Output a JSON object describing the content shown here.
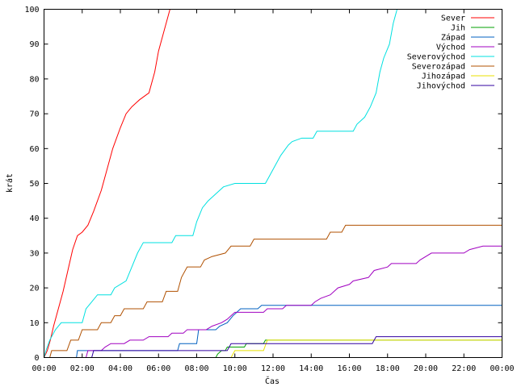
{
  "chart_data": {
    "type": "line",
    "title": "",
    "xlabel": "Čas",
    "ylabel": "krát",
    "xlim": [
      0,
      24
    ],
    "ylim": [
      0,
      100
    ],
    "grid": false,
    "legend_position": "top-right",
    "x_ticks": [
      {
        "value": 0,
        "label": "00:00"
      },
      {
        "value": 2,
        "label": "02:00"
      },
      {
        "value": 4,
        "label": "04:00"
      },
      {
        "value": 6,
        "label": "06:00"
      },
      {
        "value": 8,
        "label": "08:00"
      },
      {
        "value": 10,
        "label": "10:00"
      },
      {
        "value": 12,
        "label": "12:00"
      },
      {
        "value": 14,
        "label": "14:00"
      },
      {
        "value": 16,
        "label": "16:00"
      },
      {
        "value": 18,
        "label": "18:00"
      },
      {
        "value": 20,
        "label": "20:00"
      },
      {
        "value": 22,
        "label": "22:00"
      },
      {
        "value": 24,
        "label": "00:00"
      }
    ],
    "y_ticks": [
      0,
      10,
      20,
      30,
      40,
      50,
      60,
      70,
      80,
      90,
      100
    ],
    "series": [
      {
        "name": "Sever",
        "color": "#ff0000",
        "points": [
          [
            0,
            0
          ],
          [
            0.17,
            2
          ],
          [
            0.33,
            5
          ],
          [
            0.5,
            9
          ],
          [
            0.75,
            14
          ],
          [
            1,
            19
          ],
          [
            1.25,
            25
          ],
          [
            1.5,
            31
          ],
          [
            1.75,
            35
          ],
          [
            2,
            36
          ],
          [
            2.3,
            38
          ],
          [
            2.6,
            42
          ],
          [
            3,
            48
          ],
          [
            3.3,
            54
          ],
          [
            3.6,
            60
          ],
          [
            4,
            66
          ],
          [
            4.3,
            70
          ],
          [
            4.6,
            72
          ],
          [
            5,
            74
          ],
          [
            5.5,
            76
          ],
          [
            5.8,
            82
          ],
          [
            6,
            88
          ],
          [
            6.3,
            94
          ],
          [
            6.6,
            100
          ]
        ]
      },
      {
        "name": "Jih",
        "color": "#00a000",
        "points": [
          [
            0,
            0
          ],
          [
            9,
            0
          ],
          [
            9.1,
            1
          ],
          [
            9.3,
            2
          ],
          [
            9.5,
            2
          ],
          [
            9.6,
            3
          ],
          [
            10.5,
            3
          ],
          [
            10.6,
            4
          ],
          [
            11.5,
            4
          ],
          [
            11.6,
            5
          ],
          [
            12,
            5
          ],
          [
            12.1,
            5
          ],
          [
            24,
            5
          ]
        ]
      },
      {
        "name": "Západ",
        "color": "#0060c0",
        "points": [
          [
            0,
            0
          ],
          [
            1.7,
            0
          ],
          [
            1.75,
            2
          ],
          [
            7,
            2
          ],
          [
            7.1,
            4
          ],
          [
            8,
            4
          ],
          [
            8.1,
            8
          ],
          [
            9,
            8
          ],
          [
            9.2,
            9
          ],
          [
            9.6,
            10
          ],
          [
            9.9,
            12
          ],
          [
            10.1,
            13
          ],
          [
            10.3,
            14
          ],
          [
            11.2,
            14
          ],
          [
            11.4,
            15
          ],
          [
            24,
            15
          ]
        ]
      },
      {
        "name": "Východ",
        "color": "#a000c0",
        "points": [
          [
            0,
            0
          ],
          [
            2.2,
            0
          ],
          [
            2.3,
            2
          ],
          [
            3,
            2
          ],
          [
            3.2,
            3
          ],
          [
            3.5,
            4
          ],
          [
            4.2,
            4
          ],
          [
            4.5,
            5
          ],
          [
            5.2,
            5
          ],
          [
            5.5,
            6
          ],
          [
            6.5,
            6
          ],
          [
            6.7,
            7
          ],
          [
            7.3,
            7
          ],
          [
            7.5,
            8
          ],
          [
            8.5,
            8
          ],
          [
            8.8,
            9
          ],
          [
            9.3,
            10
          ],
          [
            9.6,
            11
          ],
          [
            9.8,
            12
          ],
          [
            10,
            13
          ],
          [
            11.5,
            13
          ],
          [
            11.7,
            14
          ],
          [
            12.5,
            14
          ],
          [
            12.7,
            15
          ],
          [
            14,
            15
          ],
          [
            14.2,
            16
          ],
          [
            14.5,
            17
          ],
          [
            15,
            18
          ],
          [
            15.4,
            20
          ],
          [
            16,
            21
          ],
          [
            16.2,
            22
          ],
          [
            17,
            23
          ],
          [
            17.3,
            25
          ],
          [
            18,
            26
          ],
          [
            18.2,
            27
          ],
          [
            19.5,
            27
          ],
          [
            19.7,
            28
          ],
          [
            20.3,
            30
          ],
          [
            22,
            30
          ],
          [
            22.3,
            31
          ],
          [
            23,
            32
          ],
          [
            24,
            32
          ]
        ]
      },
      {
        "name": "Severovýchod",
        "color": "#00e0e0",
        "points": [
          [
            0,
            0
          ],
          [
            0.1,
            2
          ],
          [
            0.3,
            5
          ],
          [
            0.6,
            8
          ],
          [
            0.9,
            10
          ],
          [
            2,
            10
          ],
          [
            2.2,
            14
          ],
          [
            2.5,
            16
          ],
          [
            2.8,
            18
          ],
          [
            3.5,
            18
          ],
          [
            3.7,
            20
          ],
          [
            4.3,
            22
          ],
          [
            4.6,
            26
          ],
          [
            4.9,
            30
          ],
          [
            5.2,
            33
          ],
          [
            6.7,
            33
          ],
          [
            6.9,
            35
          ],
          [
            7.8,
            35
          ],
          [
            8,
            39
          ],
          [
            8.3,
            43
          ],
          [
            8.6,
            45
          ],
          [
            9,
            47
          ],
          [
            9.4,
            49
          ],
          [
            10,
            50
          ],
          [
            11.6,
            50
          ],
          [
            11.8,
            52
          ],
          [
            12.1,
            55
          ],
          [
            12.4,
            58
          ],
          [
            12.8,
            61
          ],
          [
            13,
            62
          ],
          [
            13.5,
            63
          ],
          [
            14.1,
            63
          ],
          [
            14.3,
            65
          ],
          [
            16.2,
            65
          ],
          [
            16.4,
            67
          ],
          [
            16.8,
            69
          ],
          [
            17.1,
            72
          ],
          [
            17.4,
            76
          ],
          [
            17.6,
            82
          ],
          [
            17.8,
            86
          ],
          [
            18.1,
            90
          ],
          [
            18.3,
            96
          ],
          [
            18.5,
            100
          ]
        ]
      },
      {
        "name": "Severozápad",
        "color": "#b05000",
        "points": [
          [
            0,
            0
          ],
          [
            0.3,
            0
          ],
          [
            0.4,
            2
          ],
          [
            1.2,
            2
          ],
          [
            1.4,
            5
          ],
          [
            1.8,
            5
          ],
          [
            2,
            8
          ],
          [
            2.8,
            8
          ],
          [
            3,
            10
          ],
          [
            3.5,
            10
          ],
          [
            3.7,
            12
          ],
          [
            4,
            12
          ],
          [
            4.2,
            14
          ],
          [
            5.2,
            14
          ],
          [
            5.4,
            16
          ],
          [
            6.2,
            16
          ],
          [
            6.4,
            19
          ],
          [
            7,
            19
          ],
          [
            7.2,
            23
          ],
          [
            7.5,
            26
          ],
          [
            8.2,
            26
          ],
          [
            8.4,
            28
          ],
          [
            8.8,
            29
          ],
          [
            9.5,
            30
          ],
          [
            9.8,
            32
          ],
          [
            10.8,
            32
          ],
          [
            11,
            34
          ],
          [
            14.8,
            34
          ],
          [
            15,
            36
          ],
          [
            15.6,
            36
          ],
          [
            15.8,
            38
          ],
          [
            24,
            38
          ]
        ]
      },
      {
        "name": "Jihozápad",
        "color": "#e8e000",
        "points": [
          [
            0,
            0
          ],
          [
            9.8,
            0
          ],
          [
            10,
            2
          ],
          [
            11.5,
            2
          ],
          [
            11.7,
            5
          ],
          [
            17,
            5
          ],
          [
            17.2,
            5
          ],
          [
            24,
            5
          ]
        ]
      },
      {
        "name": "Jihovýchod",
        "color": "#3000a0",
        "points": [
          [
            0,
            0
          ],
          [
            2.5,
            0
          ],
          [
            2.6,
            2
          ],
          [
            9.6,
            2
          ],
          [
            9.8,
            4
          ],
          [
            10.3,
            4
          ],
          [
            17.2,
            4
          ],
          [
            17.4,
            6
          ],
          [
            24,
            6
          ]
        ]
      }
    ]
  }
}
